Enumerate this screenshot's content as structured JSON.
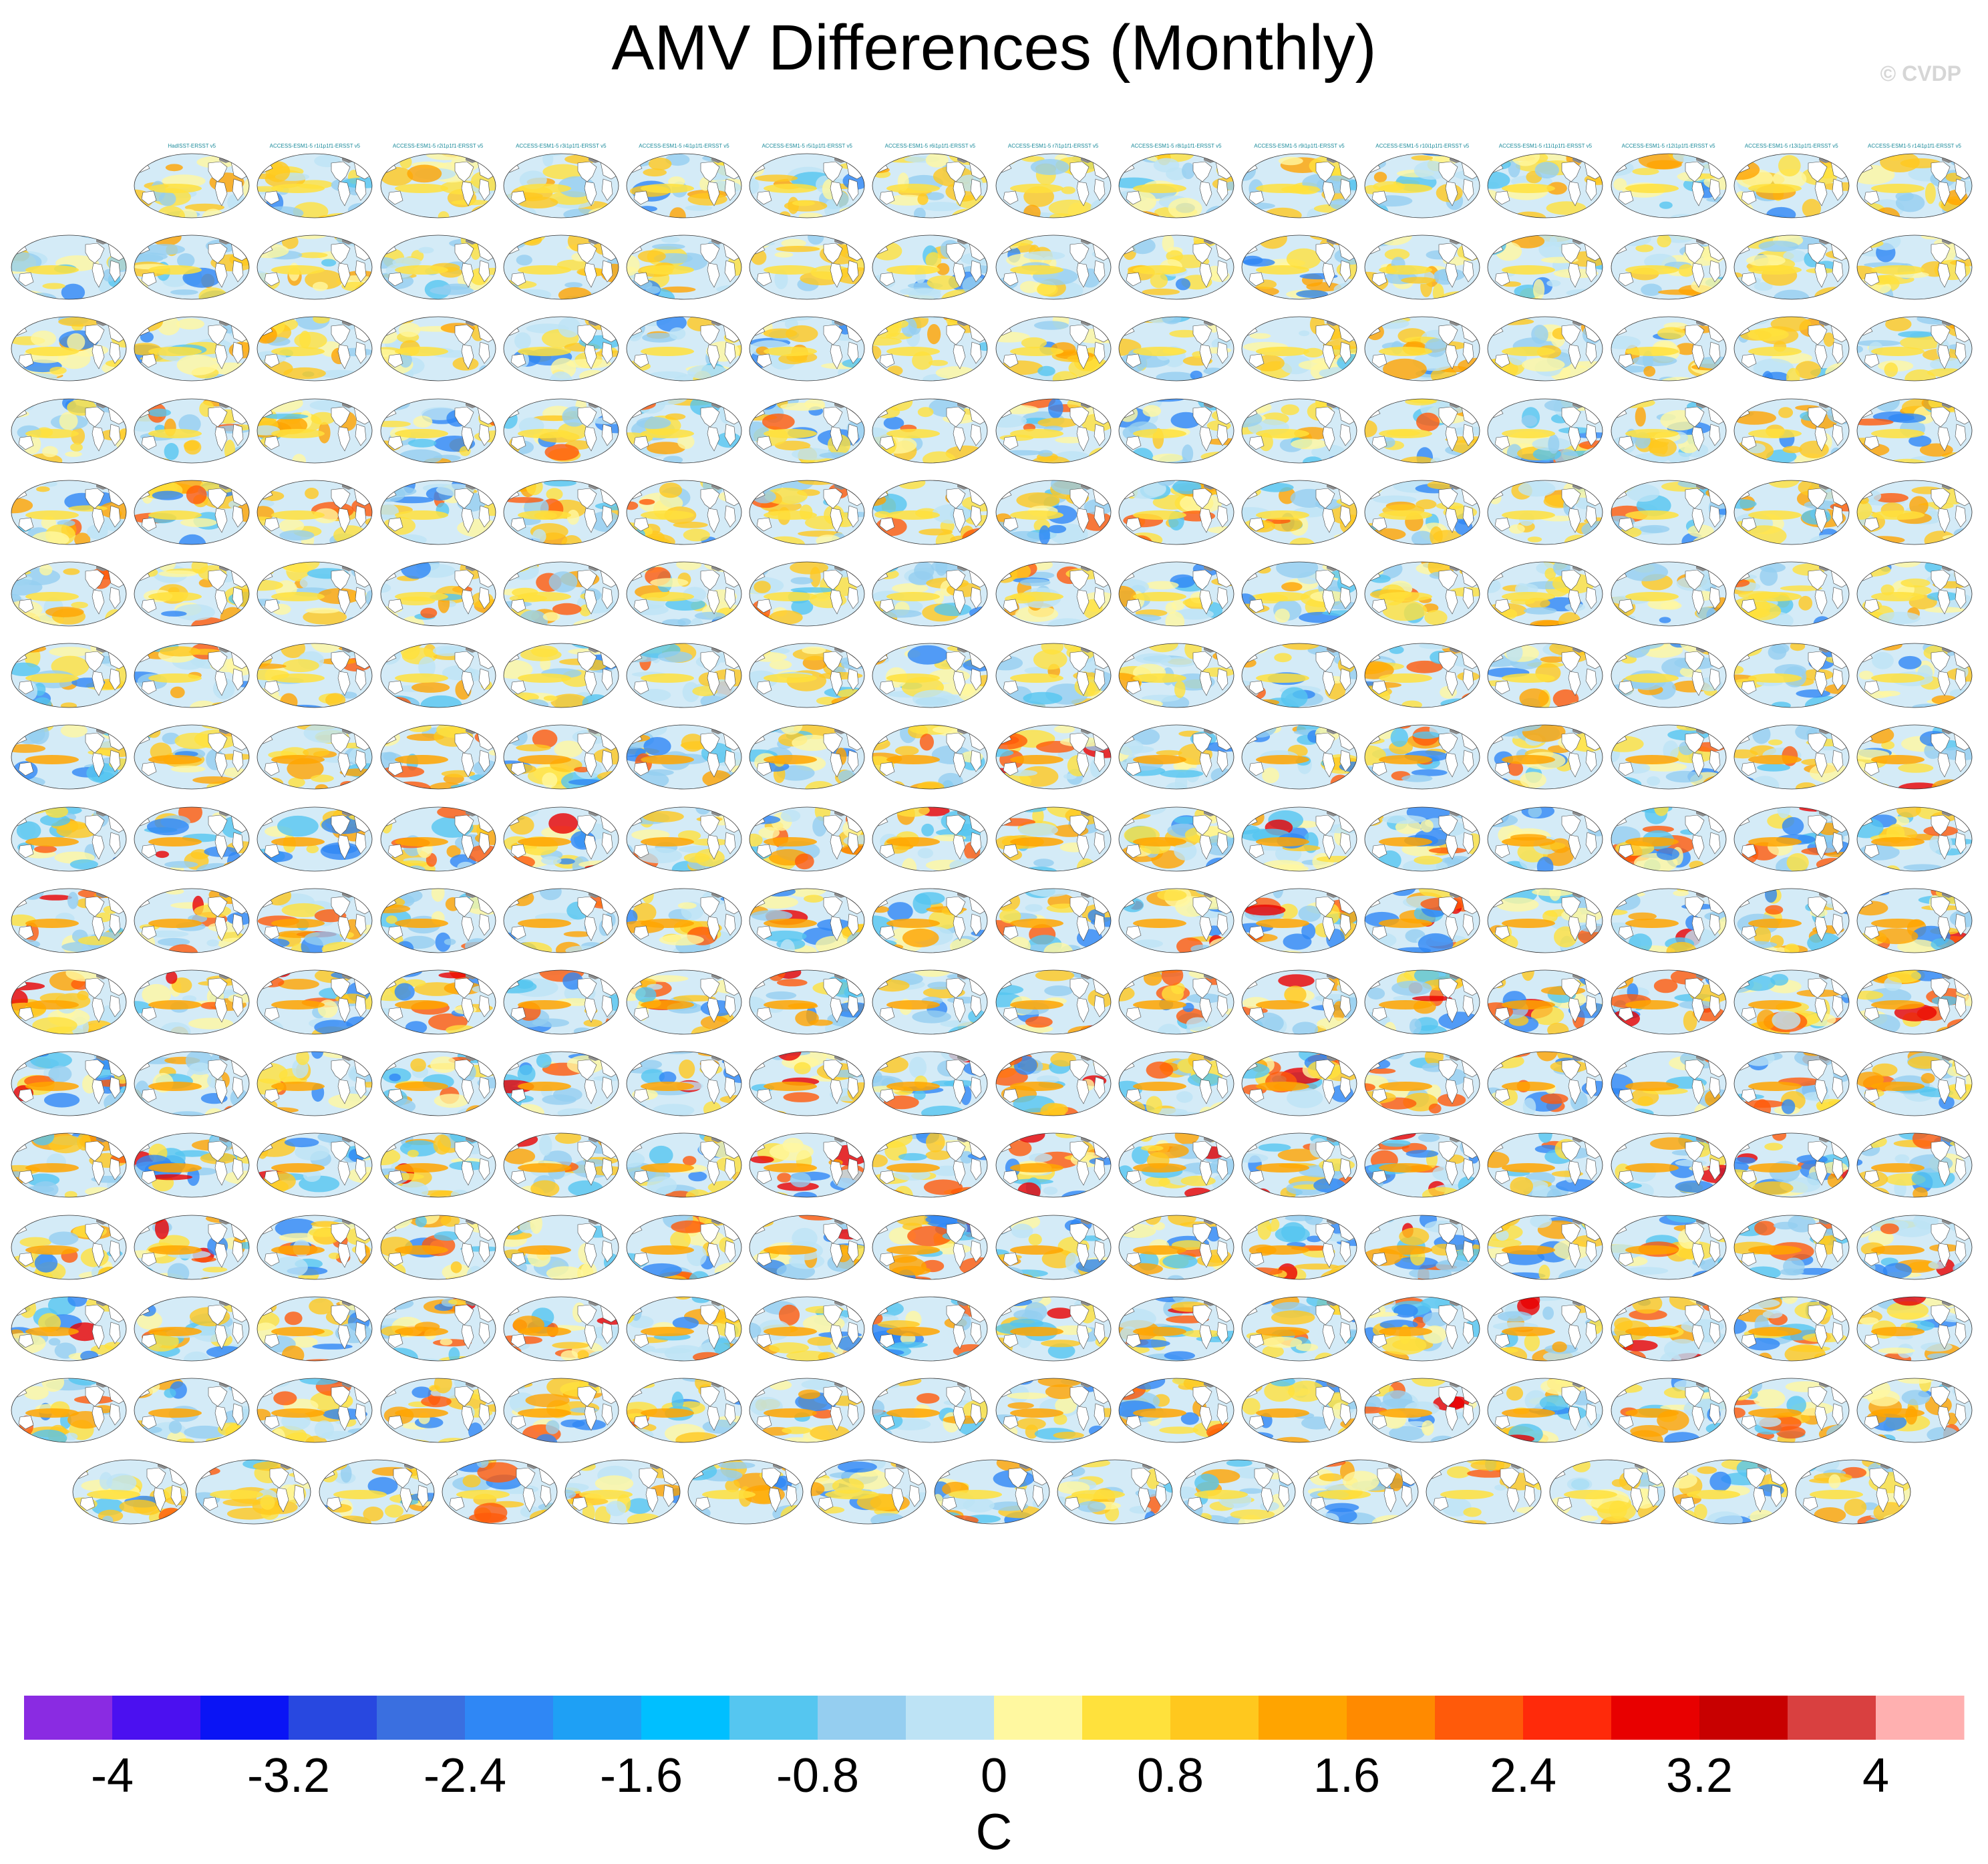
{
  "chart_data": {
    "type": "heatmap",
    "title": "AMV Differences (Monthly)",
    "copyright": "© CVDP",
    "colorbar": {
      "unit": "C",
      "min": -4.4,
      "max": 4.4,
      "interval": 0.4,
      "tick_values": [
        -4,
        -3.2,
        -2.4,
        -1.6,
        -0.8,
        0,
        0.8,
        1.6,
        2.4,
        3.2,
        4
      ],
      "tick_labels": [
        "-4",
        "-3.2",
        "-2.4",
        "-1.6",
        "-0.8",
        "0",
        "0.8",
        "1.6",
        "2.4",
        "3.2",
        "4"
      ],
      "colors": [
        "#8a2be2",
        "#4b10f0",
        "#0a14f5",
        "#2848e0",
        "#3a6fe0",
        "#2f87f5",
        "#1ea0f5",
        "#00bfff",
        "#55c6f0",
        "#95cef0",
        "#bde3f5",
        "#fff8a0",
        "#ffe13c",
        "#ffc81e",
        "#ffa400",
        "#ff8a00",
        "#ff5a0a",
        "#ff2a0a",
        "#e80000",
        "#c80000",
        "#d94040",
        "#ffb0b0"
      ]
    },
    "panel_grid": {
      "rows": 17,
      "columns": 16,
      "last_row_count": 15,
      "first_row_count": 15
    },
    "first_row_labels": [
      "HadISST-ERSST v5",
      "ACCESS-ESM1-5 r1i1p1f1-ERSST v5",
      "ACCESS-ESM1-5 r2i1p1f1-ERSST v5",
      "ACCESS-ESM1-5 r3i1p1f1-ERSST v5",
      "ACCESS-ESM1-5 r4i1p1f1-ERSST v5",
      "ACCESS-ESM1-5 r5i1p1f1-ERSST v5",
      "ACCESS-ESM1-5 r6i1p1f1-ERSST v5",
      "ACCESS-ESM1-5 r7i1p1f1-ERSST v5",
      "ACCESS-ESM1-5 r8i1p1f1-ERSST v5",
      "ACCESS-ESM1-5 r9i1p1f1-ERSST v5",
      "ACCESS-ESM1-5 r10i1p1f1-ERSST v5",
      "ACCESS-ESM1-5 r11i1p1f1-ERSST v5",
      "ACCESS-ESM1-5 r12i1p1f1-ERSST v5",
      "ACCESS-ESM1-5 r13i1p1f1-ERSST v5",
      "ACCESS-ESM1-5 r14i1p1f1-ERSST v5"
    ],
    "row_label_colors": [
      "#1a8a9a",
      "#1a8a9a",
      "#1a8a9a",
      "#4a8a7a",
      "#4a8a7a",
      "#4a8a7a",
      "#c0c080",
      "#b04a3a",
      "#b04a3a",
      "#b04a3a",
      "#9a7ad0",
      "#9a7ad0",
      "#9a7ad0",
      "#9a7ad0",
      "#9a7ad0",
      "#9a7ad0",
      "#d0a0a0"
    ],
    "anomaly_strength": [
      0.3,
      0.32,
      0.32,
      0.55,
      0.55,
      0.5,
      0.45,
      0.72,
      0.78,
      0.82,
      0.82,
      0.8,
      0.85,
      0.78,
      0.8,
      0.72,
      0.5
    ]
  }
}
